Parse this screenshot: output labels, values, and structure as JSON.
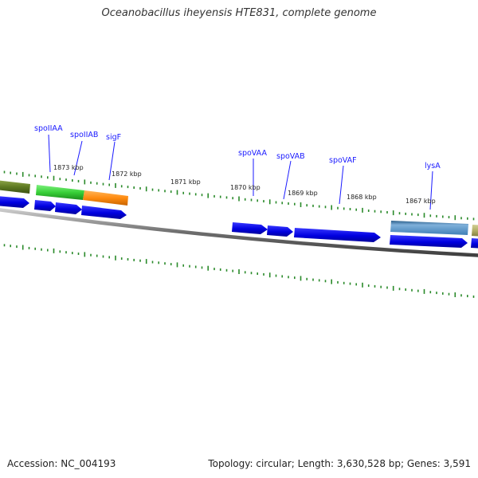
{
  "title": "Oceanobacillus iheyensis HTE831, complete genome",
  "footer": {
    "accession": "Accession: NC_004193",
    "topology": "Topology: circular; Length: 3,630,528 bp; Genes: 3,591"
  },
  "colors": {
    "backbone": "#777777",
    "tick": "#2a8a2a",
    "cds_forward": "#0000ee",
    "gene_label": "#1a1aff"
  },
  "genes": [
    {
      "name": "spoIIAA"
    },
    {
      "name": "spoIIAB"
    },
    {
      "name": "sigF"
    },
    {
      "name": "spoVAA"
    },
    {
      "name": "spoVAB"
    },
    {
      "name": "spoVAF"
    },
    {
      "name": "lysA"
    }
  ],
  "position_labels": [
    "1873 kbp",
    "1872 kbp",
    "1871 kbp",
    "1870 kbp",
    "1869 kbp",
    "1868 kbp",
    "1867 kbp"
  ]
}
